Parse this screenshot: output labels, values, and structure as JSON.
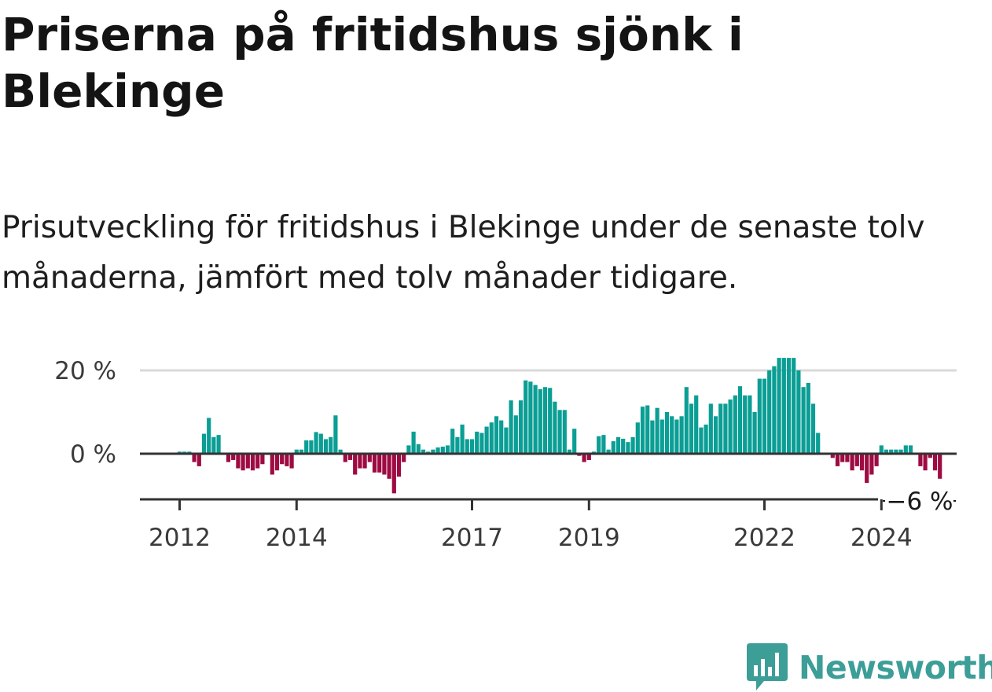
{
  "title": "Priserna på fritidshus sjönk i Blekinge",
  "subtitle": "Prisutveckling för fritidshus i Blekinge under de senaste tolv månaderna, jämfört med tolv månader tidigare.",
  "colors": {
    "positive": "#0b9e95",
    "negative": "#9e0b43",
    "gridline": "#d9d9d9",
    "baseline": "#333333"
  },
  "logo": {
    "text": "Newsworthy",
    "icon": "newsworthy-bar-chart-icon",
    "color": "#3d9e98"
  },
  "chart_data": {
    "type": "bar",
    "y_unit": "%",
    "ylim": [
      -10.5,
      23
    ],
    "grid": true,
    "y_ticks": [
      {
        "value": 0,
        "label": "0 %"
      },
      {
        "value": 20,
        "label": "20 %"
      }
    ],
    "x_ticks": [
      {
        "label": "2012",
        "index": 0
      },
      {
        "label": "2014",
        "index": 24
      },
      {
        "label": "2017",
        "index": 60
      },
      {
        "label": "2019",
        "index": 84
      },
      {
        "label": "2022",
        "index": 120
      },
      {
        "label": "2024",
        "index": 144
      }
    ],
    "start": "2012-01",
    "end_label": "−6 %",
    "values": [
      0.5,
      0.5,
      0.5,
      -2.0,
      -3.0,
      4.8,
      8.6,
      4.0,
      4.5,
      0.0,
      -2.0,
      -1.5,
      -3.5,
      -4.0,
      -3.5,
      -4.0,
      -3.5,
      -2.5,
      0.0,
      -5.0,
      -4.0,
      -2.5,
      -3.0,
      -3.5,
      1.0,
      1.0,
      3.2,
      3.2,
      5.2,
      4.8,
      3.5,
      4.0,
      9.2,
      1.0,
      -2.0,
      -1.5,
      -5.0,
      -3.5,
      -3.5,
      -2.0,
      -4.5,
      -4.5,
      -5.0,
      -6.0,
      -9.5,
      -5.5,
      -2.0,
      2.0,
      5.3,
      2.3,
      1.0,
      0.5,
      1.0,
      1.5,
      1.7,
      2.0,
      6.0,
      4.0,
      7.0,
      3.5,
      3.5,
      5.3,
      5.0,
      6.5,
      7.5,
      9.0,
      8.0,
      6.3,
      12.8,
      9.2,
      12.8,
      17.6,
      17.3,
      16.5,
      15.5,
      16.0,
      15.8,
      12.5,
      10.5,
      10.5,
      1.0,
      6.0,
      -0.5,
      -2.0,
      -1.5,
      0.5,
      4.2,
      4.5,
      1.0,
      3.0,
      4.0,
      3.6,
      2.8,
      4.0,
      7.5,
      11.3,
      11.6,
      8.0,
      11.0,
      8.2,
      10.0,
      9.0,
      8.2,
      9.0,
      16.0,
      12.0,
      14.0,
      6.3,
      7.0,
      12.0,
      9.0,
      12.0,
      12.0,
      13.0,
      14.0,
      16.2,
      14.0,
      14.0,
      10.0,
      18.0,
      18.0,
      20.0,
      21.0,
      23.0,
      23.0,
      23.0,
      23.0,
      20.0,
      16.0,
      17.0,
      12.0,
      5.0,
      0.0,
      0.0,
      -1.0,
      -3.0,
      -2.0,
      -2.0,
      -4.0,
      -3.0,
      -4.0,
      -7.0,
      -5.0,
      -3.0,
      2.0,
      1.0,
      1.0,
      1.0,
      1.0,
      2.0,
      2.0,
      0.0,
      -3.0,
      -4.0,
      -1.0,
      -4.0,
      -6.0
    ]
  }
}
